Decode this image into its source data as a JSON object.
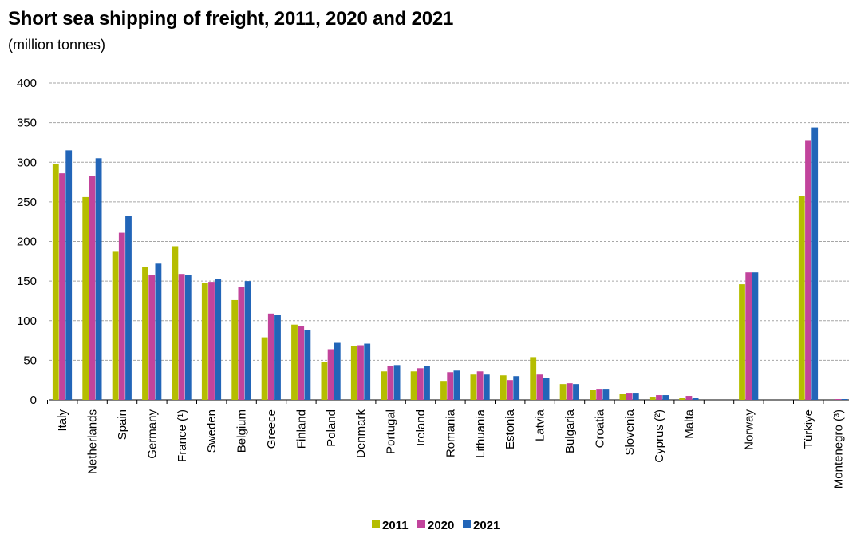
{
  "title": "Short sea shipping of freight, 2011, 2020 and 2021",
  "subtitle": "(million tonnes)",
  "colors": {
    "2011": "#b5bd00",
    "2020": "#c2449c",
    "2021": "#2265b8",
    "grid": "#a6a6a6"
  },
  "chart_data": {
    "type": "bar",
    "title": "Short sea shipping of freight, 2011, 2020 and 2021",
    "ylabel": "(million tonnes)",
    "ylim": [
      0,
      400
    ],
    "yticks": [
      0,
      50,
      100,
      150,
      200,
      250,
      300,
      350,
      400
    ],
    "grid": true,
    "legend_position": "bottom",
    "categories": [
      "Italy",
      "Netherlands",
      "Spain",
      "Germany",
      "France (¹)",
      "Sweden",
      "Belgium",
      "Greece",
      "Finland",
      "Poland",
      "Denmark",
      "Portugal",
      "Ireland",
      "Romania",
      "Lithuania",
      "Estonia",
      "Latvia",
      "Bulgaria",
      "Croatia",
      "Slovenia",
      "Cyprus (²)",
      "Malta",
      "",
      "Norway",
      "",
      "Türkiye",
      "Montenegro (³)"
    ],
    "series": [
      {
        "name": "2011",
        "values": [
          298,
          256,
          187,
          168,
          194,
          148,
          126,
          79,
          95,
          48,
          68,
          36,
          36,
          24,
          32,
          31,
          54,
          20,
          13,
          8,
          4,
          3,
          null,
          146,
          null,
          257,
          null
        ]
      },
      {
        "name": "2020",
        "values": [
          286,
          283,
          211,
          158,
          159,
          149,
          143,
          109,
          93,
          64,
          69,
          43,
          40,
          35,
          36,
          25,
          32,
          21,
          14,
          9,
          6,
          5,
          null,
          161,
          null,
          327,
          1
        ]
      },
      {
        "name": "2021",
        "values": [
          315,
          305,
          232,
          172,
          158,
          153,
          150,
          107,
          88,
          72,
          71,
          44,
          43,
          37,
          32,
          30,
          28,
          20,
          14,
          9,
          6,
          3,
          null,
          161,
          null,
          344,
          1
        ]
      }
    ]
  }
}
